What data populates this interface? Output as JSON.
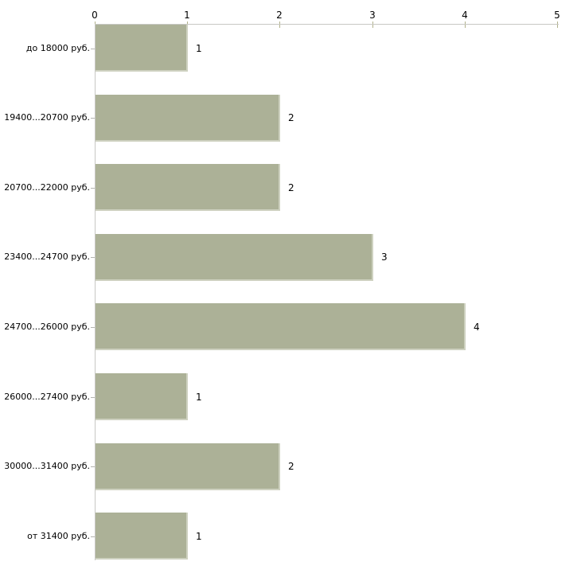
{
  "chart_data": {
    "type": "bar",
    "orientation": "horizontal",
    "title": "",
    "xlabel": "",
    "ylabel": "",
    "categories": [
      "до 18000 руб.",
      "19400...20700 руб.",
      "20700...22000 руб.",
      "23400...24700 руб.",
      "24700...26000 руб.",
      "26000...27400 руб.",
      "30000...31400 руб.",
      "от 31400 руб."
    ],
    "values": [
      1,
      2,
      2,
      3,
      4,
      1,
      2,
      1
    ],
    "x_ticks": [
      "0",
      "1",
      "2",
      "3",
      "4",
      "5"
    ],
    "xlim": [
      0,
      5
    ],
    "axis_position": "top",
    "grid": false,
    "legend": false,
    "colors": {
      "background": "#ffffff",
      "bar_fill": "#acb197",
      "bar_edge": "#ced1c0",
      "axis_line": "#c8c8c4",
      "tick_mark": "#b2b28c",
      "category_tick": "#b4b4b0",
      "text": "#000000"
    }
  }
}
